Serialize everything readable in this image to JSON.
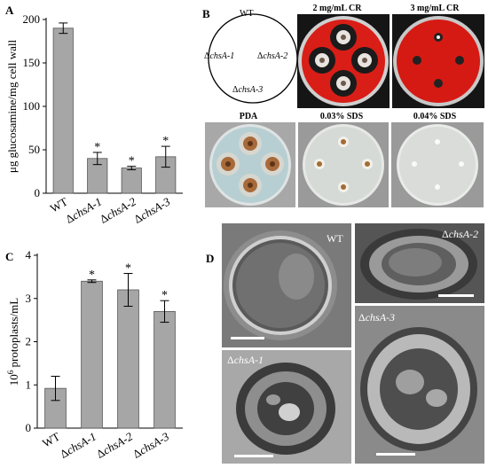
{
  "panels": {
    "a": {
      "letter": "A",
      "ylabel": "μg glucosamine/mg cell wall",
      "chart_data": {
        "type": "bar",
        "categories": [
          "WT",
          "ΔchsA-1",
          "ΔchsA-2",
          "ΔchsA-3"
        ],
        "category_parts": [
          [
            "WT",
            ""
          ],
          [
            "Δ",
            "chsA-1"
          ],
          [
            "Δ",
            "chsA-2"
          ],
          [
            "Δ",
            "chsA-3"
          ]
        ],
        "values": [
          190,
          40,
          29,
          42
        ],
        "errors": [
          6,
          7,
          2,
          12
        ],
        "significance": [
          "",
          "*",
          "*",
          "*"
        ],
        "ylim": [
          0,
          200
        ],
        "yticks": [
          "0",
          "50",
          "100",
          "150",
          "200"
        ],
        "ylabel": "μg glucosamine/mg cell wall"
      }
    },
    "b": {
      "letter": "B",
      "key_labels": {
        "wt": "WT",
        "m1_prefix": "Δ",
        "m1": "chsA-1",
        "m2_prefix": "Δ",
        "m2": "chsA-2",
        "m3_prefix": "Δ",
        "m3": "chsA-3"
      },
      "plates": [
        "2 mg/mL CR",
        "3 mg/mL CR",
        "PDA",
        "0.03% SDS",
        "0.04% SDS"
      ]
    },
    "c": {
      "letter": "C",
      "ylabel_base": "10",
      "ylabel_sup": "6",
      "ylabel_rest": " protoplasts/mL",
      "chart_data": {
        "type": "bar",
        "categories": [
          "WT",
          "ΔchsA-1",
          "ΔchsA-2",
          "ΔchsA-3"
        ],
        "category_parts": [
          [
            "WT",
            ""
          ],
          [
            "Δ",
            "chsA-1"
          ],
          [
            "Δ",
            "chsA-2"
          ],
          [
            "Δ",
            "chsA-3"
          ]
        ],
        "values": [
          0.92,
          3.4,
          3.2,
          2.7
        ],
        "errors": [
          0.28,
          0.03,
          0.38,
          0.25
        ],
        "significance": [
          "",
          "*",
          "*",
          "*"
        ],
        "ylim": [
          0,
          4
        ],
        "yticks": [
          "0",
          "1",
          "2",
          "3",
          "4"
        ],
        "ylabel": "10^6 protoplasts/mL"
      }
    },
    "d": {
      "letter": "D",
      "labels": {
        "wt": "WT",
        "m2_prefix": "Δ",
        "m2": "chsA-2",
        "m3_prefix": "Δ",
        "m3": "chsA-3",
        "m1_prefix": "Δ",
        "m1": "chsA-1"
      }
    }
  },
  "colors": {
    "bar": "#a6a6a6",
    "cr_plate": "#d81e17",
    "pda_plate": "#b7cfd3",
    "sds_plate": "#d6dad6"
  }
}
